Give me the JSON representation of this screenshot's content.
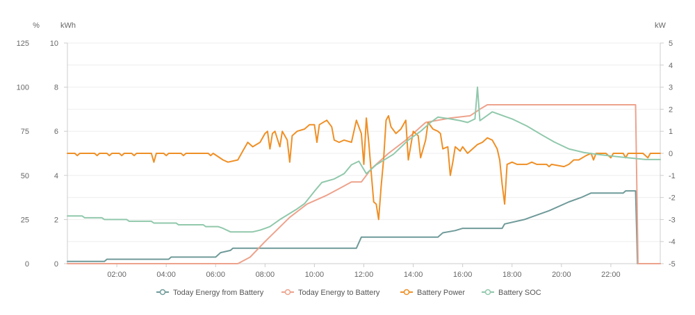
{
  "chart_data": {
    "type": "line",
    "x_axis": {
      "min": 0,
      "max": 24,
      "ticks": [
        "02:00",
        "04:00",
        "06:00",
        "08:00",
        "10:00",
        "12:00",
        "14:00",
        "16:00",
        "18:00",
        "20:00",
        "22:00"
      ],
      "tick_hours": [
        2,
        4,
        6,
        8,
        10,
        12,
        14,
        16,
        18,
        20,
        22
      ]
    },
    "y_axes": {
      "soc": {
        "unit": "%",
        "min": 0,
        "max": 125,
        "ticks": [
          0,
          25,
          50,
          75,
          100,
          125
        ]
      },
      "energy": {
        "unit": "kWh",
        "min": 0,
        "max": 10,
        "ticks": [
          0,
          2,
          4,
          6,
          8,
          10
        ]
      },
      "power": {
        "unit": "kW",
        "min": -5,
        "max": 5,
        "ticks": [
          -5,
          -4,
          -3,
          -2,
          -1,
          0,
          1,
          2,
          3,
          4,
          5
        ]
      }
    },
    "grid": true,
    "legend_position": "bottom",
    "series": [
      {
        "name": "Today Energy from Battery",
        "axis": "energy",
        "color": "#6f9a99",
        "points": [
          [
            0,
            0.1
          ],
          [
            1.5,
            0.1
          ],
          [
            1.6,
            0.2
          ],
          [
            4.1,
            0.2
          ],
          [
            4.2,
            0.3
          ],
          [
            6,
            0.3
          ],
          [
            6.2,
            0.5
          ],
          [
            6.6,
            0.6
          ],
          [
            6.7,
            0.7
          ],
          [
            11.7,
            0.7
          ],
          [
            11.9,
            1.2
          ],
          [
            15,
            1.2
          ],
          [
            15.2,
            1.4
          ],
          [
            15.7,
            1.5
          ],
          [
            16,
            1.6
          ],
          [
            17.6,
            1.6
          ],
          [
            17.7,
            1.8
          ],
          [
            18.5,
            2.0
          ],
          [
            19.5,
            2.4
          ],
          [
            20.3,
            2.8
          ],
          [
            20.8,
            3.0
          ],
          [
            21.2,
            3.2
          ],
          [
            22.5,
            3.2
          ],
          [
            22.6,
            3.3
          ],
          [
            23,
            3.3
          ],
          [
            23.08,
            0
          ],
          [
            24,
            0
          ]
        ]
      },
      {
        "name": "Today Energy to Battery",
        "axis": "energy",
        "color": "#eda28c",
        "points": [
          [
            0,
            0
          ],
          [
            6.9,
            0
          ],
          [
            7.4,
            0.3
          ],
          [
            8,
            1.0
          ],
          [
            9,
            2.1
          ],
          [
            9.7,
            2.7
          ],
          [
            10.5,
            3.1
          ],
          [
            11,
            3.4
          ],
          [
            11.5,
            3.7
          ],
          [
            11.9,
            3.7
          ],
          [
            12.3,
            4.3
          ],
          [
            13,
            5.0
          ],
          [
            13.7,
            5.6
          ],
          [
            14.5,
            6.4
          ],
          [
            15.5,
            6.6
          ],
          [
            16.3,
            6.7
          ],
          [
            16.7,
            7.0
          ],
          [
            17,
            7.2
          ],
          [
            23,
            7.2
          ],
          [
            23.1,
            0
          ],
          [
            24,
            0
          ]
        ]
      },
      {
        "name": "Battery Power",
        "axis": "power",
        "color": "#ef8f25",
        "points": [
          [
            0,
            0
          ],
          [
            0.3,
            0
          ],
          [
            0.4,
            -0.1
          ],
          [
            0.5,
            0
          ],
          [
            1.1,
            0
          ],
          [
            1.2,
            -0.1
          ],
          [
            1.3,
            0
          ],
          [
            1.6,
            0
          ],
          [
            1.7,
            -0.1
          ],
          [
            1.8,
            0
          ],
          [
            2.1,
            0
          ],
          [
            2.2,
            -0.1
          ],
          [
            2.3,
            0
          ],
          [
            2.6,
            0
          ],
          [
            2.7,
            -0.1
          ],
          [
            2.8,
            0
          ],
          [
            3.4,
            0
          ],
          [
            3.5,
            -0.4
          ],
          [
            3.6,
            0
          ],
          [
            3.9,
            0
          ],
          [
            4,
            -0.1
          ],
          [
            4.1,
            0
          ],
          [
            4.6,
            0
          ],
          [
            4.7,
            -0.1
          ],
          [
            4.8,
            0
          ],
          [
            5.7,
            0
          ],
          [
            5.8,
            -0.1
          ],
          [
            5.9,
            0
          ],
          [
            6.3,
            -0.3
          ],
          [
            6.5,
            -0.4
          ],
          [
            6.9,
            -0.3
          ],
          [
            7.1,
            0.1
          ],
          [
            7.3,
            0.5
          ],
          [
            7.5,
            0.3
          ],
          [
            7.8,
            0.5
          ],
          [
            8,
            0.9
          ],
          [
            8.1,
            1.0
          ],
          [
            8.2,
            0.2
          ],
          [
            8.3,
            0.9
          ],
          [
            8.4,
            1.0
          ],
          [
            8.6,
            0.3
          ],
          [
            8.7,
            1.0
          ],
          [
            8.8,
            0.8
          ],
          [
            8.9,
            0.6
          ],
          [
            9,
            -0.4
          ],
          [
            9.1,
            0.8
          ],
          [
            9.3,
            1.0
          ],
          [
            9.6,
            1.1
          ],
          [
            9.8,
            1.3
          ],
          [
            10,
            1.3
          ],
          [
            10.1,
            0.5
          ],
          [
            10.2,
            1.3
          ],
          [
            10.5,
            1.5
          ],
          [
            10.7,
            1.2
          ],
          [
            10.8,
            0.6
          ],
          [
            11,
            0.5
          ],
          [
            11.2,
            0.6
          ],
          [
            11.5,
            0.5
          ],
          [
            11.7,
            1.5
          ],
          [
            11.9,
            0.9
          ],
          [
            12,
            -0.5
          ],
          [
            12.1,
            1.6
          ],
          [
            12.2,
            0.5
          ],
          [
            12.3,
            -0.9
          ],
          [
            12.4,
            -2.2
          ],
          [
            12.5,
            -2.3
          ],
          [
            12.6,
            -3.0
          ],
          [
            12.7,
            -1.5
          ],
          [
            12.8,
            -0.3
          ],
          [
            12.9,
            1.5
          ],
          [
            13,
            1.7
          ],
          [
            13.1,
            1.2
          ],
          [
            13.3,
            0.9
          ],
          [
            13.5,
            1.1
          ],
          [
            13.7,
            1.5
          ],
          [
            13.8,
            -0.3
          ],
          [
            14,
            1.0
          ],
          [
            14.2,
            0.8
          ],
          [
            14.3,
            -0.2
          ],
          [
            14.5,
            0.6
          ],
          [
            14.6,
            1.4
          ],
          [
            14.8,
            1.1
          ],
          [
            15,
            1.0
          ],
          [
            15.1,
            0.9
          ],
          [
            15.2,
            0.2
          ],
          [
            15.4,
            0.3
          ],
          [
            15.5,
            -1.0
          ],
          [
            15.6,
            -0.4
          ],
          [
            15.7,
            0.3
          ],
          [
            15.9,
            0.1
          ],
          [
            16,
            0.3
          ],
          [
            16.2,
            0.0
          ],
          [
            16.4,
            0.2
          ],
          [
            16.6,
            0.4
          ],
          [
            16.8,
            0.5
          ],
          [
            17,
            0.7
          ],
          [
            17.2,
            0.6
          ],
          [
            17.4,
            0.2
          ],
          [
            17.5,
            -0.3
          ],
          [
            17.6,
            -1.4
          ],
          [
            17.7,
            -2.3
          ],
          [
            17.8,
            -0.5
          ],
          [
            18,
            -0.4
          ],
          [
            18.2,
            -0.5
          ],
          [
            18.6,
            -0.5
          ],
          [
            18.8,
            -0.4
          ],
          [
            19,
            -0.5
          ],
          [
            19.4,
            -0.5
          ],
          [
            19.5,
            -0.6
          ],
          [
            19.6,
            -0.5
          ],
          [
            20.1,
            -0.6
          ],
          [
            20.3,
            -0.5
          ],
          [
            20.5,
            -0.3
          ],
          [
            20.7,
            -0.3
          ],
          [
            21,
            -0.1
          ],
          [
            21.2,
            0
          ],
          [
            21.3,
            -0.3
          ],
          [
            21.4,
            0
          ],
          [
            21.8,
            0
          ],
          [
            22,
            -0.2
          ],
          [
            22.1,
            0
          ],
          [
            22.5,
            0
          ],
          [
            22.6,
            -0.2
          ],
          [
            22.7,
            0
          ],
          [
            23.3,
            0
          ],
          [
            23.5,
            -0.2
          ],
          [
            23.6,
            0
          ],
          [
            24,
            0
          ]
        ]
      },
      {
        "name": "Battery SOC",
        "axis": "soc",
        "color": "#90c8ab",
        "points": [
          [
            0,
            27
          ],
          [
            0.6,
            27
          ],
          [
            0.7,
            26
          ],
          [
            1.4,
            26
          ],
          [
            1.5,
            25
          ],
          [
            2.4,
            25
          ],
          [
            2.5,
            24
          ],
          [
            3.4,
            24
          ],
          [
            3.5,
            23
          ],
          [
            4.4,
            23
          ],
          [
            4.5,
            22
          ],
          [
            5.5,
            22
          ],
          [
            5.6,
            21
          ],
          [
            6.1,
            21
          ],
          [
            6.3,
            20
          ],
          [
            6.6,
            18
          ],
          [
            7.5,
            18
          ],
          [
            7.8,
            19
          ],
          [
            8.2,
            21
          ],
          [
            8.6,
            25
          ],
          [
            9.3,
            31
          ],
          [
            9.6,
            34
          ],
          [
            10,
            41
          ],
          [
            10.3,
            46
          ],
          [
            10.8,
            48
          ],
          [
            11.2,
            51
          ],
          [
            11.5,
            56
          ],
          [
            11.8,
            58
          ],
          [
            12.1,
            51
          ],
          [
            12.5,
            56
          ],
          [
            13.2,
            62
          ],
          [
            13.8,
            70
          ],
          [
            14.3,
            75
          ],
          [
            14.7,
            80
          ],
          [
            15,
            83
          ],
          [
            15.5,
            82
          ],
          [
            15.9,
            81
          ],
          [
            16.2,
            80
          ],
          [
            16.5,
            82
          ],
          [
            16.6,
            100
          ],
          [
            16.7,
            81
          ],
          [
            17,
            84
          ],
          [
            17.2,
            86
          ],
          [
            17.6,
            84
          ],
          [
            18,
            82
          ],
          [
            18.6,
            78
          ],
          [
            19.2,
            73
          ],
          [
            19.7,
            69
          ],
          [
            20.3,
            65
          ],
          [
            20.9,
            63
          ],
          [
            21.4,
            62
          ],
          [
            22,
            61
          ],
          [
            22.7,
            60
          ],
          [
            23.4,
            59
          ],
          [
            23.7,
            59
          ],
          [
            24,
            59
          ]
        ]
      }
    ]
  }
}
